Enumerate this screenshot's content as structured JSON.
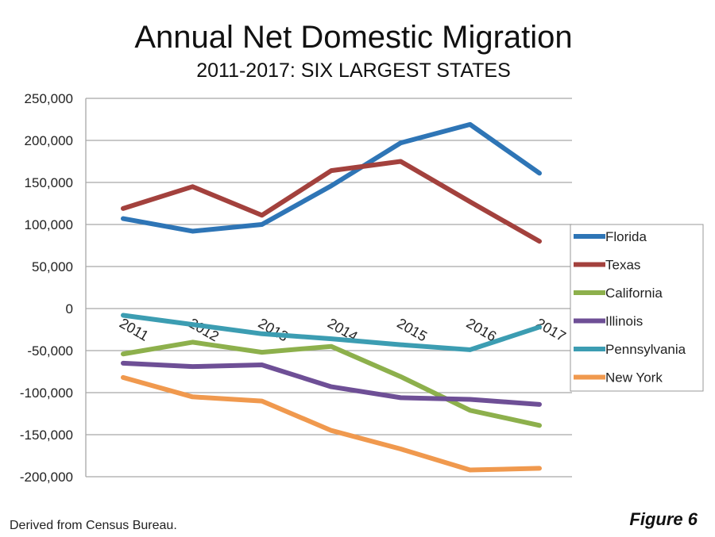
{
  "chart_data": {
    "type": "line",
    "title": "Annual Net Domestic Migration",
    "subtitle": "2011-2017: SIX LARGEST STATES",
    "categories": [
      "2011",
      "2012",
      "2013",
      "2014",
      "2015",
      "2016",
      "2017"
    ],
    "ylim": [
      -200000,
      250000
    ],
    "yticks": [
      250000,
      200000,
      150000,
      100000,
      50000,
      0,
      -50000,
      -100000,
      -150000,
      -200000
    ],
    "ytick_labels": [
      "250,000",
      "200,000",
      "150,000",
      "100,000",
      "50,000",
      "0",
      "-50,000",
      "-100,000",
      "-150,000",
      "-200,000"
    ],
    "grid": true,
    "legend_position": "right",
    "series": [
      {
        "name": "Florida",
        "color": "#2e75b6",
        "values": [
          107000,
          92000,
          100000,
          146000,
          197000,
          219000,
          161000
        ]
      },
      {
        "name": "Texas",
        "color": "#a3413d",
        "values": [
          119000,
          145000,
          111000,
          164000,
          175000,
          127000,
          80000
        ]
      },
      {
        "name": "California",
        "color": "#8db04c",
        "values": [
          -54000,
          -40000,
          -52000,
          -45000,
          -81000,
          -121000,
          -139000
        ]
      },
      {
        "name": "Illinois",
        "color": "#6e4f96",
        "values": [
          -65000,
          -69000,
          -67000,
          -93000,
          -106000,
          -108000,
          -114000
        ]
      },
      {
        "name": "Pennsylvania",
        "color": "#3c9db2",
        "values": [
          -8000,
          -19000,
          -30000,
          -36000,
          -43000,
          -49000,
          -22000
        ]
      },
      {
        "name": "New York",
        "color": "#f0994e",
        "values": [
          -82000,
          -105000,
          -110000,
          -145000,
          -167000,
          -192000,
          -190000
        ]
      }
    ]
  },
  "footer": {
    "source": "Derived from Census Bureau.",
    "figure": "Figure 6"
  }
}
